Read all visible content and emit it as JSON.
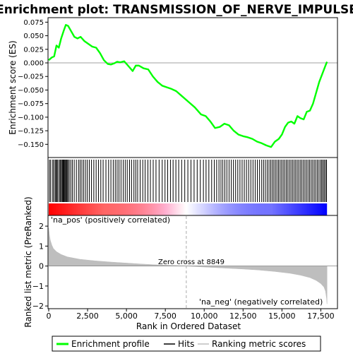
{
  "chart_data": {
    "type": "line",
    "title": "Enrichment plot: TRANSMISSION_OF_NERVE_IMPULSE",
    "panels": {
      "es": {
        "ylabel": "Enrichment score (ES)",
        "yticks": [
          0.075,
          0.05,
          0.025,
          0.0,
          -0.025,
          -0.05,
          -0.075,
          -0.1,
          -0.125,
          -0.15
        ],
        "ytick_labels": [
          "0.075",
          "0.050",
          "0.025",
          "0.000",
          "−0.025",
          "−0.050",
          "−0.075",
          "−0.100",
          "−0.125",
          "−0.150"
        ],
        "ylim": [
          -0.173,
          0.082
        ],
        "series": {
          "x": [
            0,
            200,
            350,
            500,
            650,
            800,
            950,
            1100,
            1250,
            1450,
            1650,
            1850,
            2050,
            2300,
            2550,
            2800,
            3050,
            3300,
            3550,
            3800,
            4000,
            4200,
            4400,
            4600,
            4850,
            5100,
            5400,
            5600,
            5800,
            6100,
            6400,
            6700,
            7000,
            7300,
            7600,
            7900,
            8200,
            8600,
            9000,
            9400,
            9800,
            10100,
            10400,
            10700,
            11000,
            11300,
            11600,
            11900,
            12200,
            12500,
            12800,
            13100,
            13400,
            13700,
            14000,
            14300,
            14550,
            14800,
            15000,
            15200,
            15400,
            15600,
            15800,
            16000,
            16200,
            16400,
            16600,
            16800,
            17000,
            17200,
            17400,
            17600,
            17800,
            17900
          ],
          "values": [
            0.005,
            0.01,
            0.012,
            0.032,
            0.028,
            0.045,
            0.058,
            0.07,
            0.068,
            0.058,
            0.048,
            0.045,
            0.048,
            0.04,
            0.035,
            0.03,
            0.028,
            0.018,
            0.005,
            -0.002,
            -0.003,
            -0.001,
            0.002,
            0.001,
            0.003,
            -0.005,
            -0.015,
            -0.005,
            -0.005,
            -0.01,
            -0.012,
            -0.025,
            -0.035,
            -0.042,
            -0.045,
            -0.048,
            -0.052,
            -0.062,
            -0.072,
            -0.082,
            -0.095,
            -0.098,
            -0.108,
            -0.12,
            -0.118,
            -0.112,
            -0.115,
            -0.125,
            -0.132,
            -0.135,
            -0.137,
            -0.14,
            -0.145,
            -0.148,
            -0.152,
            -0.155,
            -0.145,
            -0.14,
            -0.132,
            -0.118,
            -0.11,
            -0.108,
            -0.112,
            -0.098,
            -0.102,
            -0.104,
            -0.09,
            -0.088,
            -0.075,
            -0.055,
            -0.035,
            -0.02,
            -0.005,
            0.002
          ]
        }
      },
      "hits": {
        "x": [
          50,
          130,
          260,
          330,
          420,
          480,
          540,
          600,
          700,
          760,
          820,
          880,
          930,
          980,
          1030,
          1080,
          1130,
          1180,
          1240,
          1320,
          1420,
          1520,
          1640,
          1780,
          1920,
          2020,
          2130,
          2240,
          2360,
          2480,
          2610,
          2750,
          2900,
          3050,
          3200,
          3350,
          3500,
          3680,
          3850,
          4000,
          4150,
          4280,
          4400,
          4520,
          4650,
          4790,
          4920,
          5050,
          5200,
          5330,
          5480,
          5600,
          5720,
          5880,
          6050,
          6200,
          6380,
          6540,
          6720,
          6900,
          7100,
          7300,
          7480,
          7650,
          7830,
          8000,
          8180,
          8360,
          8550,
          8750,
          8950,
          9150,
          9350,
          9550,
          9750,
          9950,
          10120,
          10300,
          10480,
          10650,
          10800,
          10950,
          11080,
          11200,
          11330,
          11460,
          11600,
          11740,
          11880,
          12020,
          12160,
          12300,
          12440,
          12580,
          12720,
          12860,
          13000,
          13140,
          13280,
          13420,
          13560,
          13700,
          13820,
          13940,
          14060,
          14170,
          14280,
          14380,
          14480,
          14580,
          14680,
          14780,
          14880,
          14980,
          15080,
          15180,
          15280,
          15380,
          15480,
          15580,
          15680,
          15780,
          15880,
          15980,
          16080,
          16180,
          16280,
          16380,
          16480,
          16580,
          16680,
          16780,
          16880,
          16980,
          17080,
          17180,
          17280,
          17380,
          17480,
          17560,
          17640,
          17720,
          17800,
          17870
        ]
      },
      "ranked": {
        "ylabel": "Ranked list metric (PreRanked)",
        "yticks": [
          2,
          1,
          0,
          -1,
          -2
        ],
        "ytick_labels": [
          "2",
          "1",
          "0",
          "−1",
          "−2"
        ],
        "ylim": [
          -2.1,
          2.5
        ],
        "series": {
          "x": [
            0,
            50,
            100,
            200,
            300,
            500,
            800,
            1200,
            2000,
            3000,
            4000,
            5000,
            6000,
            7000,
            8000,
            8849,
            9500,
            10500,
            11500,
            12500,
            13500,
            14500,
            15500,
            16200,
            16800,
            17200,
            17500,
            17700,
            17800,
            17870,
            17900
          ],
          "values": [
            1.9,
            1.55,
            1.3,
            1.05,
            0.88,
            0.72,
            0.58,
            0.46,
            0.34,
            0.26,
            0.2,
            0.15,
            0.1,
            0.06,
            0.03,
            0.0,
            -0.03,
            -0.07,
            -0.11,
            -0.15,
            -0.2,
            -0.27,
            -0.36,
            -0.46,
            -0.58,
            -0.72,
            -0.88,
            -1.05,
            -1.25,
            -1.6,
            -1.9
          ]
        },
        "zero_cross_label": "Zero cross at 8849",
        "zero_cross_x": 8849,
        "pos_label": "'na_pos' (positively correlated)",
        "neg_label": "'na_neg' (negatively correlated)"
      }
    },
    "xlabel": "Rank in Ordered Dataset",
    "xticks": [
      0,
      2500,
      5000,
      7500,
      10000,
      12500,
      15000,
      17500
    ],
    "xtick_labels": [
      "0",
      "2,500",
      "5,000",
      "7,500",
      "10,000",
      "12,500",
      "15,000",
      "17,500"
    ],
    "xlim": [
      0,
      18300
    ],
    "grid": false,
    "legend": {
      "placement": "bottom",
      "entries": [
        "Enrichment profile",
        "Hits",
        "Ranking metric scores"
      ]
    },
    "colors": {
      "enrichment_line": "#00ff00",
      "hits": "#000000",
      "ranking_fill": "#bebebe",
      "zero_line": "#808080",
      "zero_cross_line": "#aaaaaa",
      "pos_label": "#cc0000",
      "neg_label": "#0000cc",
      "pos_color": "#ff0000",
      "neg_color": "#0000ff",
      "mid_color": "#ffffff",
      "legend_ranking_line": "#bebebe"
    }
  }
}
